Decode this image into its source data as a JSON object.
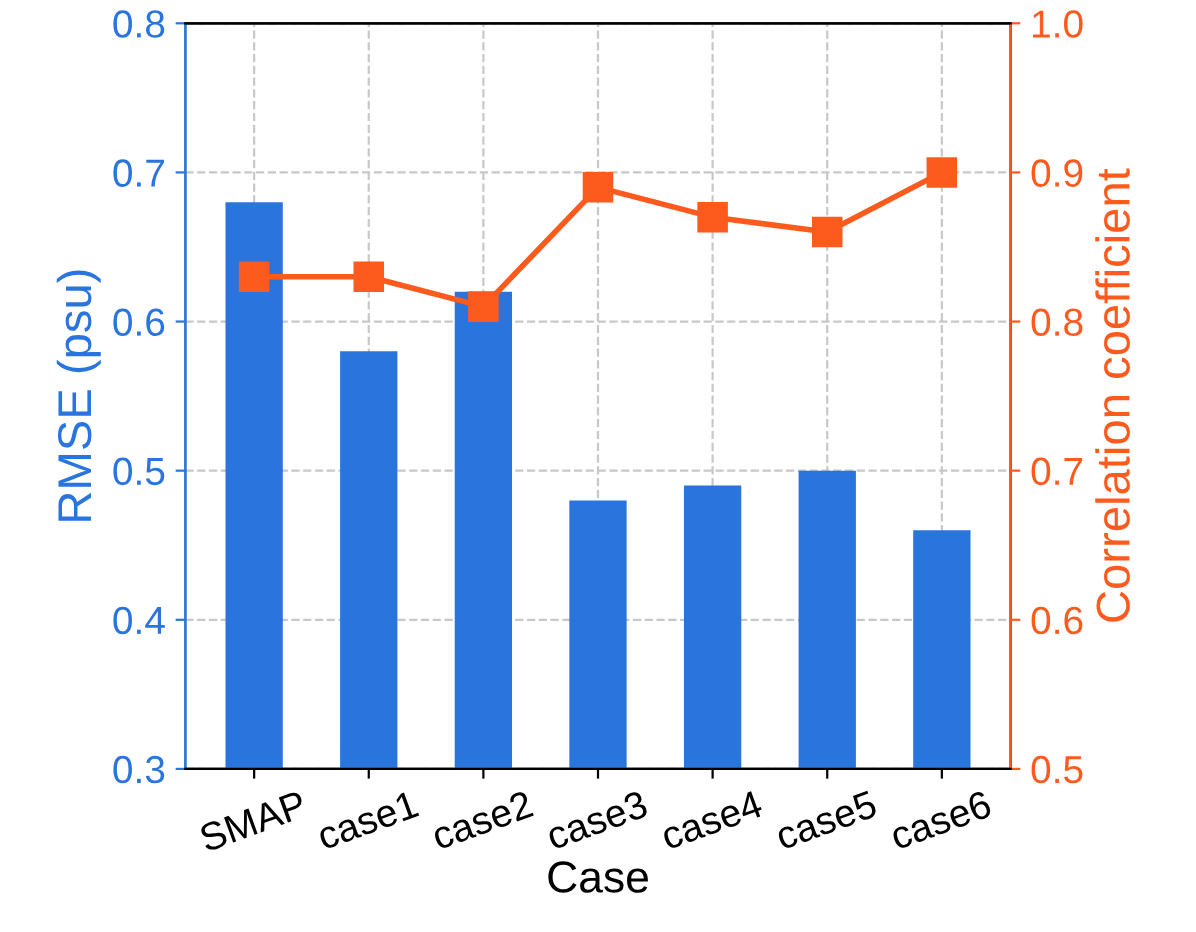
{
  "chart_data": {
    "type": "bar",
    "xlabel": "Case",
    "ylabel": "RMSE (psu)",
    "y2label": "Correlation coefficient",
    "categories": [
      "SMAP",
      "case1",
      "case2",
      "case3",
      "case4",
      "case5",
      "case6"
    ],
    "series": [
      {
        "color": "#2a74de",
        "values": [
          0.68,
          0.58,
          0.62,
          0.48,
          0.49,
          0.5,
          0.46
        ]
      },
      {
        "type": "line",
        "axis": "y2",
        "color": "#fd5a1e",
        "marker": "square",
        "values": [
          0.83,
          0.83,
          0.81,
          0.89,
          0.87,
          0.86,
          0.9
        ]
      }
    ],
    "ylim": [
      0.3,
      0.8
    ],
    "yticks": [
      0.3,
      0.4,
      0.5,
      0.6,
      0.7,
      0.8
    ],
    "y2lim": [
      0.5,
      1.0
    ],
    "y2ticks": [
      0.5,
      0.6,
      0.7,
      0.8,
      0.9,
      {
        "value": 1,
        "label": "1.0"
      }
    ],
    "grid": true
  }
}
